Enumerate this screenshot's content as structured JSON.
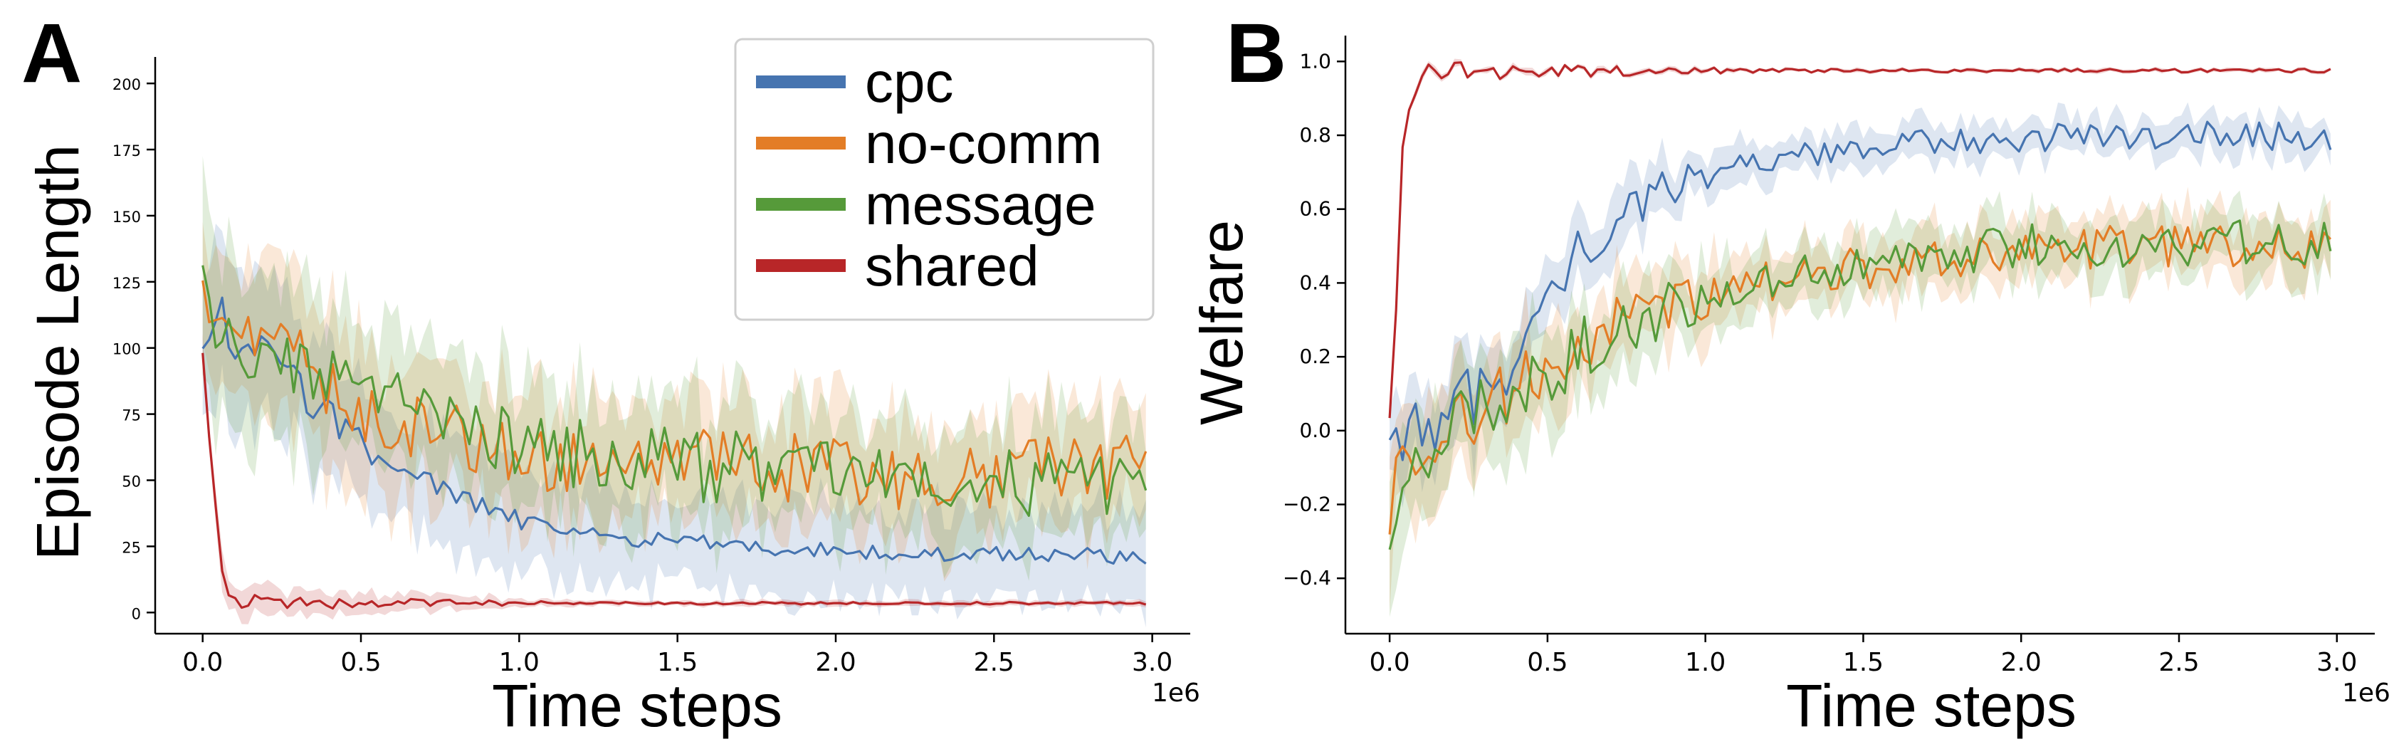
{
  "figure": {
    "panels": [
      "A",
      "B"
    ],
    "colors": {
      "cpc": "#4674b0",
      "no-comm": "#e37d26",
      "message": "#569a3a",
      "shared": "#b82628"
    }
  },
  "chart_data": [
    {
      "panel": "A",
      "type": "line",
      "xlabel": "Time steps",
      "ylabel": "Episode Length",
      "x_multiplier": "1e6",
      "xlim": [
        -0.15,
        3.12
      ],
      "ylim": [
        -8,
        210
      ],
      "xticks": [
        0.0,
        0.5,
        1.0,
        1.5,
        2.0,
        2.5,
        3.0
      ],
      "xtick_labels": [
        "0.0",
        "0.5",
        "1.0",
        "1.5",
        "2.0",
        "2.5",
        "3.0"
      ],
      "yticks": [
        0,
        25,
        50,
        75,
        100,
        125,
        150,
        175,
        200
      ],
      "ytick_labels": [
        "0",
        "25",
        "50",
        "75",
        "100",
        "125",
        "150",
        "175",
        "200"
      ],
      "legend": {
        "position": "top-right",
        "entries": [
          "cpc",
          "no-comm",
          "message",
          "shared"
        ]
      },
      "grid": false,
      "shaded_bands": true,
      "series": [
        {
          "name": "cpc",
          "color": "#4674b0",
          "band": [
            8,
            28,
            18,
            3
          ],
          "anchors": [
            [
              0,
              96
            ],
            [
              0.03,
              100
            ],
            [
              0.06,
              115
            ],
            [
              0.1,
              95
            ],
            [
              0.2,
              100
            ],
            [
              0.3,
              85
            ],
            [
              0.4,
              75
            ],
            [
              0.5,
              65
            ],
            [
              0.6,
              55
            ],
            [
              0.7,
              50
            ],
            [
              0.8,
              45
            ],
            [
              0.9,
              38
            ],
            [
              1.0,
              35
            ],
            [
              1.1,
              32
            ],
            [
              1.3,
              28
            ],
            [
              1.5,
              27
            ],
            [
              1.7,
              25
            ],
            [
              1.9,
              24
            ],
            [
              2.1,
              23
            ],
            [
              2.3,
              22
            ],
            [
              2.6,
              22
            ],
            [
              3.0,
              21
            ]
          ]
        },
        {
          "name": "no-comm",
          "color": "#e37d26",
          "band": [
            10,
            30,
            22,
            14
          ],
          "anchors": [
            [
              0,
              120
            ],
            [
              0.05,
              110
            ],
            [
              0.1,
              105
            ],
            [
              0.2,
              100
            ],
            [
              0.3,
              98
            ],
            [
              0.4,
              85
            ],
            [
              0.5,
              75
            ],
            [
              0.6,
              72
            ],
            [
              0.7,
              70
            ],
            [
              0.8,
              68
            ],
            [
              0.9,
              64
            ],
            [
              1.0,
              60
            ],
            [
              1.2,
              57
            ],
            [
              1.5,
              55
            ],
            [
              1.8,
              55
            ],
            [
              2.0,
              52
            ],
            [
              2.3,
              52
            ],
            [
              2.6,
              52
            ],
            [
              3.0,
              55
            ]
          ]
        },
        {
          "name": "message",
          "color": "#569a3a",
          "band": [
            10,
            30,
            22,
            14
          ],
          "anchors": [
            [
              0,
              125
            ],
            [
              0.05,
              105
            ],
            [
              0.1,
              100
            ],
            [
              0.2,
              95
            ],
            [
              0.3,
              92
            ],
            [
              0.4,
              88
            ],
            [
              0.5,
              83
            ],
            [
              0.6,
              80
            ],
            [
              0.7,
              76
            ],
            [
              0.8,
              72
            ],
            [
              0.9,
              68
            ],
            [
              1.0,
              63
            ],
            [
              1.2,
              60
            ],
            [
              1.5,
              56
            ],
            [
              1.8,
              54
            ],
            [
              2.0,
              52
            ],
            [
              2.3,
              50
            ],
            [
              2.6,
              50
            ],
            [
              3.0,
              50
            ]
          ]
        },
        {
          "name": "shared",
          "color": "#b82628",
          "band": [
            3,
            6,
            1,
            0.5
          ],
          "anchors": [
            [
              0,
              96
            ],
            [
              0.02,
              70
            ],
            [
              0.04,
              40
            ],
            [
              0.06,
              18
            ],
            [
              0.08,
              8
            ],
            [
              0.1,
              5
            ],
            [
              0.15,
              4
            ],
            [
              0.3,
              3.5
            ],
            [
              1.0,
              3.5
            ],
            [
              2.0,
              3.5
            ],
            [
              3.0,
              3.5
            ]
          ]
        }
      ]
    },
    {
      "panel": "B",
      "type": "line",
      "xlabel": "Time steps",
      "ylabel": "Welfare",
      "x_multiplier": "1e6",
      "xlim": [
        -0.14,
        3.12
      ],
      "ylim": [
        -0.55,
        1.07
      ],
      "xticks": [
        0.0,
        0.5,
        1.0,
        1.5,
        2.0,
        2.5,
        3.0
      ],
      "xtick_labels": [
        "0.0",
        "0.5",
        "1.0",
        "1.5",
        "2.0",
        "2.5",
        "3.0"
      ],
      "yticks": [
        -0.4,
        -0.2,
        0.0,
        0.2,
        0.4,
        0.6,
        0.8,
        1.0
      ],
      "ytick_labels": [
        "−0.4",
        "−0.2",
        "0.0",
        "0.2",
        "0.4",
        "0.6",
        "0.8",
        "1.0"
      ],
      "grid": false,
      "shaded_bands": true,
      "series": [
        {
          "name": "cpc",
          "color": "#4674b0",
          "band": [
            0.1,
            0.12,
            0.05,
            0.04
          ],
          "anchors": [
            [
              0,
              0.05
            ],
            [
              0.05,
              -0.05
            ],
            [
              0.1,
              0.0
            ],
            [
              0.2,
              0.05
            ],
            [
              0.3,
              0.12
            ],
            [
              0.4,
              0.2
            ],
            [
              0.5,
              0.35
            ],
            [
              0.6,
              0.48
            ],
            [
              0.7,
              0.55
            ],
            [
              0.8,
              0.62
            ],
            [
              0.9,
              0.66
            ],
            [
              1.0,
              0.7
            ],
            [
              1.2,
              0.73
            ],
            [
              1.4,
              0.75
            ],
            [
              1.6,
              0.77
            ],
            [
              1.8,
              0.78
            ],
            [
              2.0,
              0.79
            ],
            [
              2.3,
              0.8
            ],
            [
              2.6,
              0.8
            ],
            [
              3.0,
              0.8
            ]
          ]
        },
        {
          "name": "no-comm",
          "color": "#e37d26",
          "band": [
            0.12,
            0.16,
            0.08,
            0.06
          ],
          "anchors": [
            [
              0,
              -0.2
            ],
            [
              0.1,
              -0.05
            ],
            [
              0.2,
              0.0
            ],
            [
              0.3,
              0.05
            ],
            [
              0.4,
              0.12
            ],
            [
              0.5,
              0.18
            ],
            [
              0.6,
              0.24
            ],
            [
              0.8,
              0.3
            ],
            [
              1.0,
              0.35
            ],
            [
              1.2,
              0.4
            ],
            [
              1.5,
              0.44
            ],
            [
              1.8,
              0.47
            ],
            [
              2.0,
              0.48
            ],
            [
              2.3,
              0.5
            ],
            [
              2.6,
              0.5
            ],
            [
              3.0,
              0.5
            ]
          ]
        },
        {
          "name": "message",
          "color": "#569a3a",
          "band": [
            0.12,
            0.16,
            0.08,
            0.06
          ],
          "anchors": [
            [
              0,
              -0.25
            ],
            [
              0.1,
              -0.05
            ],
            [
              0.2,
              0.0
            ],
            [
              0.3,
              0.05
            ],
            [
              0.4,
              0.1
            ],
            [
              0.5,
              0.16
            ],
            [
              0.6,
              0.22
            ],
            [
              0.8,
              0.3
            ],
            [
              1.0,
              0.36
            ],
            [
              1.2,
              0.42
            ],
            [
              1.5,
              0.46
            ],
            [
              1.8,
              0.48
            ],
            [
              2.0,
              0.5
            ],
            [
              2.3,
              0.5
            ],
            [
              2.6,
              0.51
            ],
            [
              3.0,
              0.51
            ]
          ]
        },
        {
          "name": "shared",
          "color": "#b82628",
          "band": [
            0.03,
            0.01,
            0.005,
            0.005
          ],
          "anchors": [
            [
              0,
              0.05
            ],
            [
              0.02,
              0.3
            ],
            [
              0.04,
              0.78
            ],
            [
              0.07,
              0.92
            ],
            [
              0.1,
              0.97
            ],
            [
              0.2,
              0.975
            ],
            [
              1.0,
              0.975
            ],
            [
              2.0,
              0.975
            ],
            [
              3.0,
              0.975
            ]
          ]
        }
      ]
    }
  ]
}
